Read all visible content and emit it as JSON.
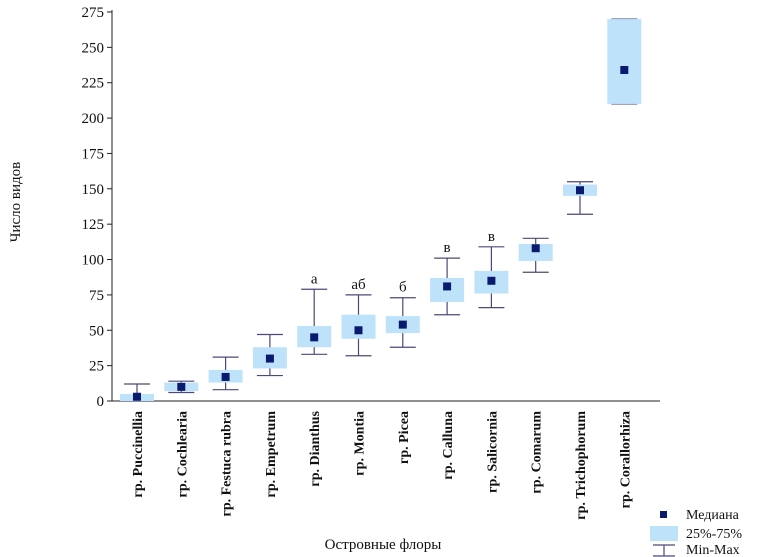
{
  "chart_data": {
    "type": "box",
    "xlabel": "Островные флоры",
    "ylabel": "Число видов",
    "ylim": [
      0,
      275
    ],
    "yticks": [
      0,
      25,
      50,
      75,
      100,
      125,
      150,
      175,
      200,
      225,
      250,
      275
    ],
    "grid": false,
    "legend_position": "bottom-right",
    "legend": {
      "median": "Медиана",
      "iqr": "25%-75%",
      "range": "Min-Max"
    },
    "colors": {
      "box": "#bfe2fb",
      "median": "#0a1a6e",
      "whisker": "#4a4a7a",
      "axis": "#222222"
    },
    "categories": [
      "гр. Puccinellia",
      "гр. Cochlearia",
      "гр. Festuca rubra",
      "гр. Empetrum",
      "гр. Dianthus",
      "гр. Montia",
      "гр. Picea",
      "гр. Calluna",
      "гр. Salicornia",
      "гр. Comarum",
      "гр. Trichophorum",
      "гр. Corallorhiza"
    ],
    "boxes": [
      {
        "min": 0,
        "q1": 0,
        "median": 3,
        "q3": 5,
        "max": 12,
        "label": ""
      },
      {
        "min": 6,
        "q1": 7,
        "median": 10,
        "q3": 13,
        "max": 14,
        "label": ""
      },
      {
        "min": 8,
        "q1": 13,
        "median": 17,
        "q3": 22,
        "max": 31,
        "label": ""
      },
      {
        "min": 18,
        "q1": 23,
        "median": 30,
        "q3": 38,
        "max": 47,
        "label": ""
      },
      {
        "min": 33,
        "q1": 38,
        "median": 45,
        "q3": 53,
        "max": 79,
        "label": "а"
      },
      {
        "min": 32,
        "q1": 44,
        "median": 50,
        "q3": 61,
        "max": 75,
        "label": "аб"
      },
      {
        "min": 38,
        "q1": 48,
        "median": 54,
        "q3": 60,
        "max": 73,
        "label": "б"
      },
      {
        "min": 61,
        "q1": 70,
        "median": 81,
        "q3": 87,
        "max": 101,
        "label": "в"
      },
      {
        "min": 66,
        "q1": 76,
        "median": 85,
        "q3": 92,
        "max": 109,
        "label": "в"
      },
      {
        "min": 91,
        "q1": 99,
        "median": 108,
        "q3": 111,
        "max": 115,
        "label": ""
      },
      {
        "min": 132,
        "q1": 145,
        "median": 149,
        "q3": 153,
        "max": 155,
        "label": ""
      },
      {
        "min": 210,
        "q1": 210,
        "median": 234,
        "q3": 270,
        "max": 270,
        "label": ""
      }
    ]
  }
}
